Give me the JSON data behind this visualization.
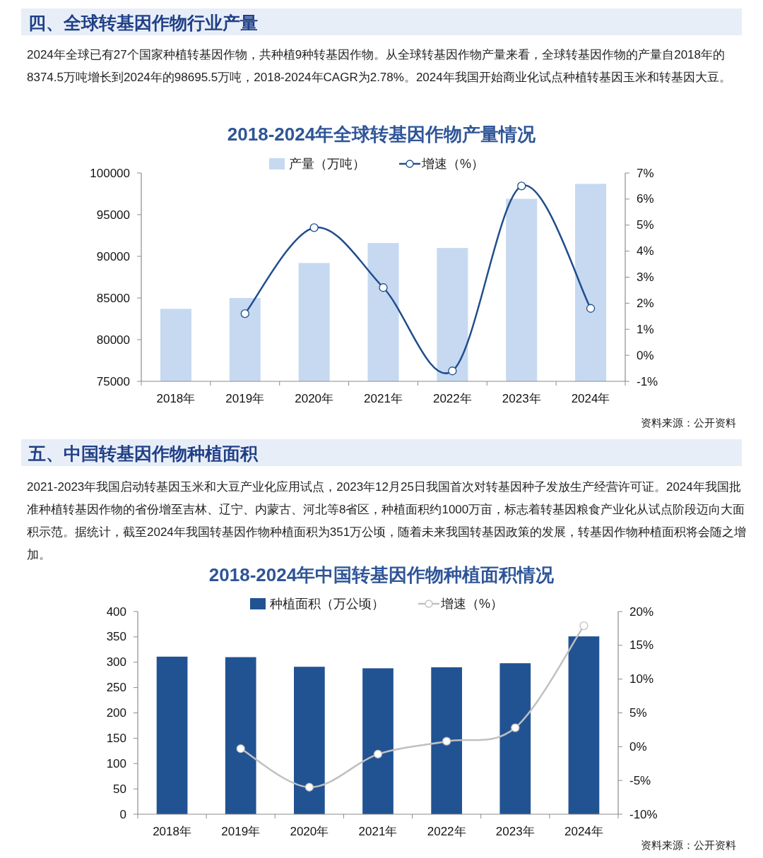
{
  "chart_data": [
    {
      "type": "bar",
      "title": "2018-2024年全球转基因作物产量情况",
      "annotations": [
        "四、全球转基因作物行业产量",
        "2024年全球已有27个国家种植转基因作物，共种植9种转基因作物。从全球转基因作物产量来看，全球转基因作物的产量自2018年的8374.5万吨增长到2024年的98695.5万吨，2018-2024年CAGR为2.78%。2024年我国开始商业化试点种植转基因玉米和转基因大豆。",
        "资料来源：公开资料"
      ],
      "categories": [
        "2018年",
        "2019年",
        "2020年",
        "2021年",
        "2022年",
        "2023年",
        "2024年"
      ],
      "series": [
        {
          "name": "产量（万吨）",
          "color": "#c6d9f1",
          "values": [
            83700,
            85000,
            89200,
            91600,
            91000,
            96900,
            98700
          ]
        },
        {
          "name": "增速（%）",
          "type": "line",
          "axis": "y2",
          "color": "#1f4e8c",
          "marker": "circle",
          "values": [
            null,
            1.6,
            4.9,
            2.6,
            -0.6,
            6.5,
            1.8
          ]
        }
      ],
      "ylim": [
        75000,
        100000
      ],
      "yticks": [
        75000,
        80000,
        85000,
        90000,
        95000,
        100000
      ],
      "y2lim": [
        -1,
        7
      ],
      "y2ticks": [
        {
          "value": -1,
          "label": "-1%"
        },
        {
          "value": 0,
          "label": "0%"
        },
        {
          "value": 1,
          "label": "1%"
        },
        {
          "value": 2,
          "label": "2%"
        },
        {
          "value": 3,
          "label": "3%"
        },
        {
          "value": 4,
          "label": "4%"
        },
        {
          "value": 5,
          "label": "5%"
        },
        {
          "value": 6,
          "label": "6%"
        },
        {
          "value": 7,
          "label": "7%"
        }
      ],
      "legend": "top",
      "grid": false
    },
    {
      "type": "bar",
      "title": "2018-2024年中国转基因作物种植面积情况",
      "annotations": [
        "五、中国转基因作物种植面积",
        "2021-2023年我国启动转基因玉米和大豆产业化应用试点，2023年12月25日我国首次对转基因种子发放生产经营许可证。2024年我国批准种植转基因作物的省份增至吉林、辽宁、内蒙古、河北等8省区，种植面积约1000万亩，标志着转基因粮食产业化从试点阶段迈向大面积示范。据统计，截至2024年我国转基因作物种植面积为351万公顷，随着未来我国转基因政策的发展，转基因作物种植面积将会随之增加。",
        "资料来源：公开资料"
      ],
      "categories": [
        "2018年",
        "2019年",
        "2020年",
        "2021年",
        "2022年",
        "2023年",
        "2024年"
      ],
      "series": [
        {
          "name": "种植面积（万公顷）",
          "color": "#215393",
          "values": [
            311,
            310,
            291,
            288,
            290,
            298,
            351
          ]
        },
        {
          "name": "增速（%）",
          "type": "line",
          "axis": "y2",
          "color": "#c0c0c0",
          "marker": "circle",
          "values": [
            null,
            -0.3,
            -6.0,
            -1.1,
            0.8,
            2.8,
            17.9
          ]
        }
      ],
      "ylim": [
        0,
        400
      ],
      "yticks": [
        0,
        50,
        100,
        150,
        200,
        250,
        300,
        350,
        400
      ],
      "y2lim": [
        -10,
        20
      ],
      "y2ticks": [
        {
          "value": -10,
          "label": "-10%"
        },
        {
          "value": -5,
          "label": "-5%"
        },
        {
          "value": 0,
          "label": "0%"
        },
        {
          "value": 5,
          "label": "5%"
        },
        {
          "value": 10,
          "label": "10%"
        },
        {
          "value": 15,
          "label": "15%"
        },
        {
          "value": 20,
          "label": "20%"
        }
      ],
      "legend": "top",
      "grid": false
    }
  ]
}
